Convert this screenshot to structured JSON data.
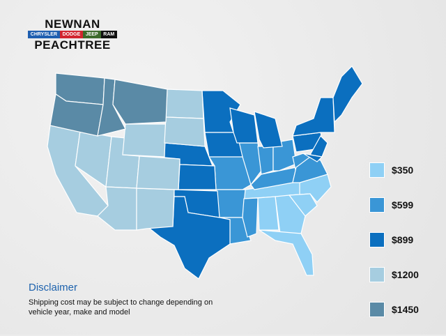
{
  "logo": {
    "line1": "NEWNAN",
    "brands": [
      {
        "name": "CHRYSLER",
        "color": "#1f5fb0"
      },
      {
        "name": "DODGE",
        "color": "#d22630"
      },
      {
        "name": "JEEP",
        "color": "#3d6b2c"
      },
      {
        "name": "RAM",
        "color": "#111111"
      }
    ],
    "line3": "PEACHTREE"
  },
  "legend": [
    {
      "label": "$350",
      "color": "#8fd0f5"
    },
    {
      "label": "$599",
      "color": "#3a96d6"
    },
    {
      "label": "$899",
      "color": "#0b6fbf"
    },
    {
      "label": "$1200",
      "color": "#a6cde0"
    },
    {
      "label": "$1450",
      "color": "#5a8aa6"
    }
  ],
  "regions": {
    "$350": [
      "TN",
      "NC",
      "SC",
      "GA",
      "AL",
      "FL"
    ],
    "$599": [
      "MO",
      "AR",
      "LA",
      "MS",
      "IL",
      "IN",
      "OH",
      "KY",
      "WV",
      "VA"
    ],
    "$899": [
      "NE",
      "KS",
      "OK",
      "TX",
      "MN",
      "IA",
      "WI",
      "MI",
      "PA",
      "NY",
      "NJ",
      "MD",
      "New England"
    ],
    "$1200": [
      "CA",
      "NV",
      "UT",
      "AZ",
      "NM",
      "CO",
      "WY",
      "ND",
      "SD"
    ],
    "$1450": [
      "WA",
      "OR",
      "ID",
      "MT"
    ]
  },
  "disclaimer": {
    "title": "Disclaimer",
    "text": "Shipping cost may be subject to change depending on vehicle year, make and model"
  }
}
